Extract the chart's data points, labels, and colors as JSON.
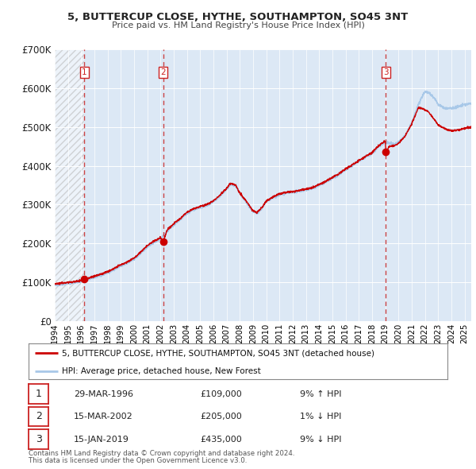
{
  "title": "5, BUTTERCUP CLOSE, HYTHE, SOUTHAMPTON, SO45 3NT",
  "subtitle": "Price paid vs. HM Land Registry's House Price Index (HPI)",
  "ylim": [
    0,
    700000
  ],
  "yticks": [
    0,
    100000,
    200000,
    300000,
    400000,
    500000,
    600000,
    700000
  ],
  "ytick_labels": [
    "£0",
    "£100K",
    "£200K",
    "£300K",
    "£400K",
    "£500K",
    "£600K",
    "£700K"
  ],
  "xmin": 1994.0,
  "xmax": 2025.5,
  "fig_bg": "#ffffff",
  "plot_bg": "#dce8f5",
  "grid_color": "#ffffff",
  "hpi_color": "#a8c8e8",
  "price_color": "#cc0000",
  "sale_marker_color": "#cc0000",
  "vline_color": "#cc4444",
  "hatch_color": "#c8c8c8",
  "transactions": [
    {
      "num": 1,
      "date_str": "29-MAR-1996",
      "date_x": 1996.23,
      "price": 109000,
      "pct": "9%",
      "dir": "↑"
    },
    {
      "num": 2,
      "date_str": "15-MAR-2002",
      "date_x": 2002.21,
      "price": 205000,
      "pct": "1%",
      "dir": "↓"
    },
    {
      "num": 3,
      "date_str": "15-JAN-2019",
      "date_x": 2019.04,
      "price": 435000,
      "pct": "9%",
      "dir": "↓"
    }
  ],
  "legend_line1": "5, BUTTERCUP CLOSE, HYTHE, SOUTHAMPTON, SO45 3NT (detached house)",
  "legend_line2": "HPI: Average price, detached house, New Forest",
  "footnote1": "Contains HM Land Registry data © Crown copyright and database right 2024.",
  "footnote2": "This data is licensed under the Open Government Licence v3.0.",
  "hatch_region_end": 1996.23,
  "hpi_anchors": [
    [
      1994.0,
      93000
    ],
    [
      1994.5,
      95000
    ],
    [
      1995.0,
      98000
    ],
    [
      1995.5,
      100000
    ],
    [
      1996.0,
      103000
    ],
    [
      1996.5,
      107000
    ],
    [
      1997.0,
      113000
    ],
    [
      1997.5,
      118000
    ],
    [
      1998.0,
      126000
    ],
    [
      1998.5,
      133000
    ],
    [
      1999.0,
      142000
    ],
    [
      1999.5,
      150000
    ],
    [
      2000.0,
      160000
    ],
    [
      2000.5,
      175000
    ],
    [
      2001.0,
      192000
    ],
    [
      2001.5,
      203000
    ],
    [
      2002.0,
      212000
    ],
    [
      2002.5,
      232000
    ],
    [
      2003.0,
      248000
    ],
    [
      2003.5,
      262000
    ],
    [
      2004.0,
      278000
    ],
    [
      2004.5,
      288000
    ],
    [
      2005.0,
      293000
    ],
    [
      2005.5,
      298000
    ],
    [
      2006.0,
      308000
    ],
    [
      2006.5,
      322000
    ],
    [
      2007.0,
      340000
    ],
    [
      2007.3,
      352000
    ],
    [
      2007.7,
      348000
    ],
    [
      2008.0,
      328000
    ],
    [
      2008.5,
      305000
    ],
    [
      2009.0,
      282000
    ],
    [
      2009.3,
      278000
    ],
    [
      2009.7,
      292000
    ],
    [
      2010.0,
      308000
    ],
    [
      2010.5,
      318000
    ],
    [
      2011.0,
      325000
    ],
    [
      2011.5,
      330000
    ],
    [
      2012.0,
      332000
    ],
    [
      2012.5,
      335000
    ],
    [
      2013.0,
      338000
    ],
    [
      2013.5,
      342000
    ],
    [
      2014.0,
      350000
    ],
    [
      2014.5,
      358000
    ],
    [
      2015.0,
      368000
    ],
    [
      2015.5,
      378000
    ],
    [
      2016.0,
      390000
    ],
    [
      2016.5,
      400000
    ],
    [
      2017.0,
      412000
    ],
    [
      2017.5,
      422000
    ],
    [
      2018.0,
      432000
    ],
    [
      2018.5,
      450000
    ],
    [
      2019.0,
      462000
    ],
    [
      2019.3,
      458000
    ],
    [
      2019.7,
      455000
    ],
    [
      2020.0,
      460000
    ],
    [
      2020.5,
      478000
    ],
    [
      2021.0,
      510000
    ],
    [
      2021.5,
      558000
    ],
    [
      2022.0,
      592000
    ],
    [
      2022.3,
      588000
    ],
    [
      2022.7,
      575000
    ],
    [
      2023.0,
      558000
    ],
    [
      2023.5,
      548000
    ],
    [
      2024.0,
      548000
    ],
    [
      2024.5,
      552000
    ],
    [
      2025.0,
      558000
    ],
    [
      2025.5,
      560000
    ]
  ],
  "price_anchors": [
    [
      1994.0,
      97000
    ],
    [
      1994.5,
      98000
    ],
    [
      1995.0,
      100000
    ],
    [
      1995.5,
      102000
    ],
    [
      1996.0,
      105000
    ],
    [
      1996.23,
      109000
    ],
    [
      1996.5,
      110000
    ],
    [
      1997.0,
      116000
    ],
    [
      1997.5,
      121000
    ],
    [
      1998.0,
      128000
    ],
    [
      1998.5,
      136000
    ],
    [
      1999.0,
      145000
    ],
    [
      1999.5,
      153000
    ],
    [
      2000.0,
      163000
    ],
    [
      2000.5,
      178000
    ],
    [
      2001.0,
      195000
    ],
    [
      2001.5,
      206000
    ],
    [
      2002.0,
      215000
    ],
    [
      2002.21,
      205000
    ],
    [
      2002.5,
      235000
    ],
    [
      2003.0,
      251000
    ],
    [
      2003.5,
      265000
    ],
    [
      2004.0,
      280000
    ],
    [
      2004.5,
      290000
    ],
    [
      2005.0,
      295000
    ],
    [
      2005.5,
      300000
    ],
    [
      2006.0,
      310000
    ],
    [
      2006.5,
      325000
    ],
    [
      2007.0,
      342000
    ],
    [
      2007.3,
      355000
    ],
    [
      2007.7,
      350000
    ],
    [
      2008.0,
      330000
    ],
    [
      2008.5,
      308000
    ],
    [
      2009.0,
      284000
    ],
    [
      2009.3,
      280000
    ],
    [
      2009.7,
      294000
    ],
    [
      2010.0,
      310000
    ],
    [
      2010.5,
      320000
    ],
    [
      2011.0,
      328000
    ],
    [
      2011.5,
      332000
    ],
    [
      2012.0,
      334000
    ],
    [
      2012.5,
      337000
    ],
    [
      2013.0,
      340000
    ],
    [
      2013.5,
      344000
    ],
    [
      2014.0,
      352000
    ],
    [
      2014.5,
      360000
    ],
    [
      2015.0,
      370000
    ],
    [
      2015.5,
      380000
    ],
    [
      2016.0,
      392000
    ],
    [
      2016.5,
      402000
    ],
    [
      2017.0,
      414000
    ],
    [
      2017.5,
      424000
    ],
    [
      2018.0,
      434000
    ],
    [
      2018.5,
      452000
    ],
    [
      2019.0,
      464000
    ],
    [
      2019.04,
      435000
    ],
    [
      2019.3,
      450000
    ],
    [
      2019.7,
      452000
    ],
    [
      2020.0,
      458000
    ],
    [
      2020.5,
      476000
    ],
    [
      2021.0,
      508000
    ],
    [
      2021.5,
      550000
    ],
    [
      2022.0,
      545000
    ],
    [
      2022.3,
      538000
    ],
    [
      2022.7,
      520000
    ],
    [
      2023.0,
      505000
    ],
    [
      2023.5,
      496000
    ],
    [
      2024.0,
      490000
    ],
    [
      2024.5,
      492000
    ],
    [
      2025.0,
      496000
    ],
    [
      2025.5,
      500000
    ]
  ]
}
